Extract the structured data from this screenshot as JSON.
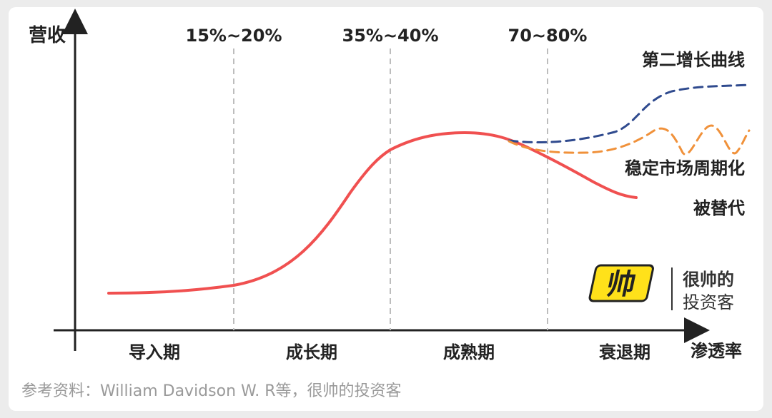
{
  "chart_data": {
    "type": "line",
    "title": "",
    "ylabel": "营收",
    "xlabel": "渗透率",
    "stages": [
      "导入期",
      "成长期",
      "成熟期",
      "衰退期"
    ],
    "thresholds": [
      "15%~20%",
      "35%~40%",
      "70~80%"
    ],
    "series": [
      {
        "name": "",
        "color": "#f05050",
        "style": "solid"
      },
      {
        "name": "第二增长曲线",
        "color": "#2f4a8e",
        "style": "dashed"
      },
      {
        "name": "稳定市场周期化",
        "color": "#f0913a",
        "style": "dashed"
      },
      {
        "name": "被替代",
        "color": "#f05050",
        "style": "solid"
      }
    ],
    "grid": false,
    "axes_ticks": false
  },
  "source": "参考资料：William Davidson W. R等，很帅的投资客",
  "logo": {
    "glyph": "帅",
    "line1": "很帅的",
    "line2": "投资客",
    "accent": "#ffe11a"
  }
}
